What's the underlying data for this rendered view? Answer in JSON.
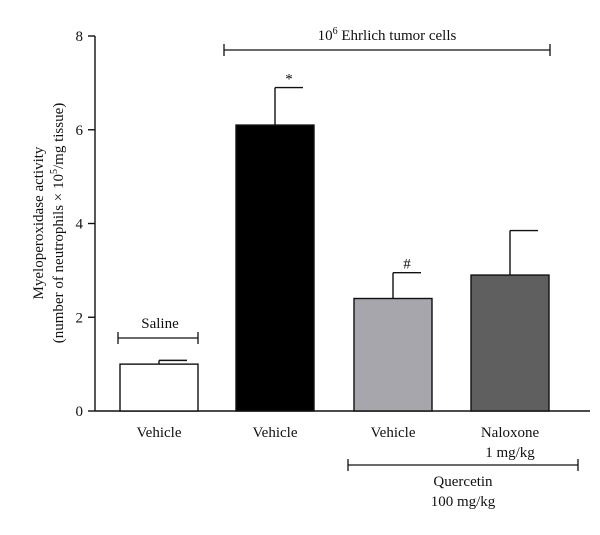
{
  "chart_data": {
    "type": "bar",
    "ylabel_line1": "Myeloperoxidase activity",
    "ylabel_line2_prefix": "(number of neutrophils × 10",
    "ylabel_line2_sup": "5",
    "ylabel_line2_suffix": "/mg tissue)",
    "ylim": [
      0,
      8
    ],
    "yticks": [
      "0",
      "2",
      "4",
      "6",
      "8"
    ],
    "grid": false,
    "categories": [
      "Vehicle",
      "Vehicle",
      "Vehicle",
      "Naloxone"
    ],
    "category_sublabels": [
      "",
      "",
      "",
      "1 mg/kg"
    ],
    "values": [
      1.0,
      6.1,
      2.4,
      2.9
    ],
    "errors": [
      0.08,
      0.8,
      0.55,
      0.95
    ],
    "bar_colors": [
      "#ffffff",
      "#000000",
      "#a6a6ac",
      "#5f5f5f"
    ],
    "significance": [
      "",
      "*",
      "#",
      ""
    ],
    "annotations": {
      "saline": "Saline",
      "tumor_base": "10",
      "tumor_exp": "6",
      "tumor_rest": " Ehrlich tumor cells",
      "quercetin_line1": "Quercetin",
      "quercetin_line2": "100 mg/kg"
    }
  }
}
